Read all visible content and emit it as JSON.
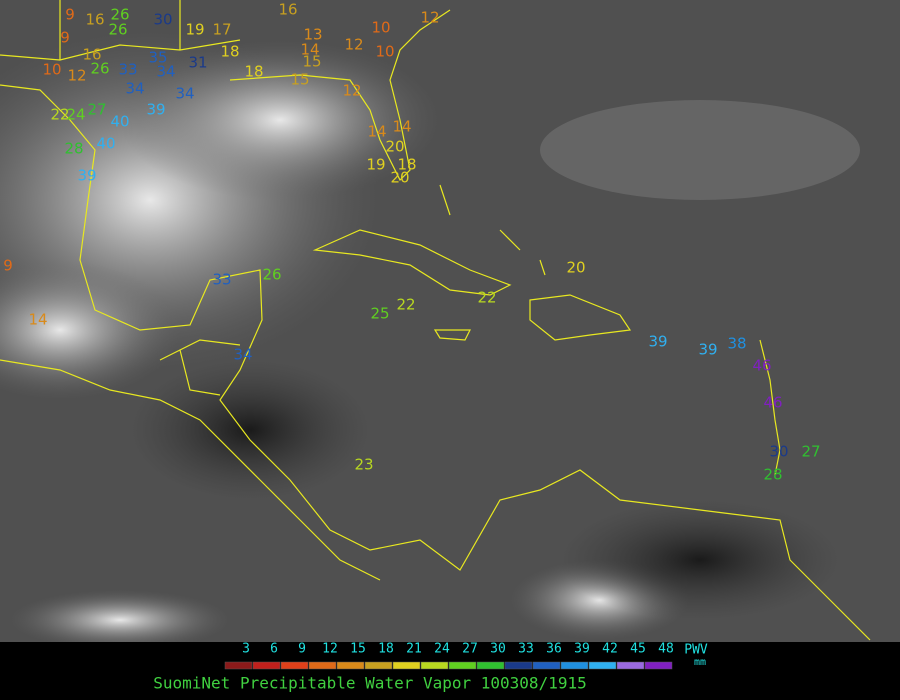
{
  "title": "SuomiNet Precipitable Water Vapor 100308/1915",
  "legend": {
    "unit_label": "PWV",
    "unit": "mm",
    "ticks": [
      3,
      6,
      9,
      12,
      15,
      18,
      21,
      24,
      27,
      30,
      33,
      36,
      39,
      42,
      45,
      48
    ],
    "colors": [
      "#8b1a1a",
      "#c0201c",
      "#e0401a",
      "#e06a18",
      "#d98a1a",
      "#c8a020",
      "#e0d020",
      "#b8d820",
      "#60d020",
      "#30c030",
      "#1a3a8a",
      "#2060c0",
      "#2090e0",
      "#30b0f0",
      "#9a6ae0",
      "#8020c0"
    ]
  },
  "stations": [
    9,
    16,
    26,
    30,
    19,
    17,
    9,
    16,
    26,
    35,
    31,
    18,
    10,
    12,
    26,
    33,
    34,
    18,
    16,
    13,
    14,
    15,
    12,
    10,
    10,
    12,
    15,
    12,
    34,
    34,
    22,
    24,
    27,
    39,
    40,
    28,
    40,
    39,
    14,
    14,
    20,
    18,
    19,
    20,
    9,
    14,
    33,
    26,
    25,
    22,
    22,
    20,
    39,
    39,
    38,
    46,
    46,
    34,
    23,
    30,
    27,
    28
  ]
}
